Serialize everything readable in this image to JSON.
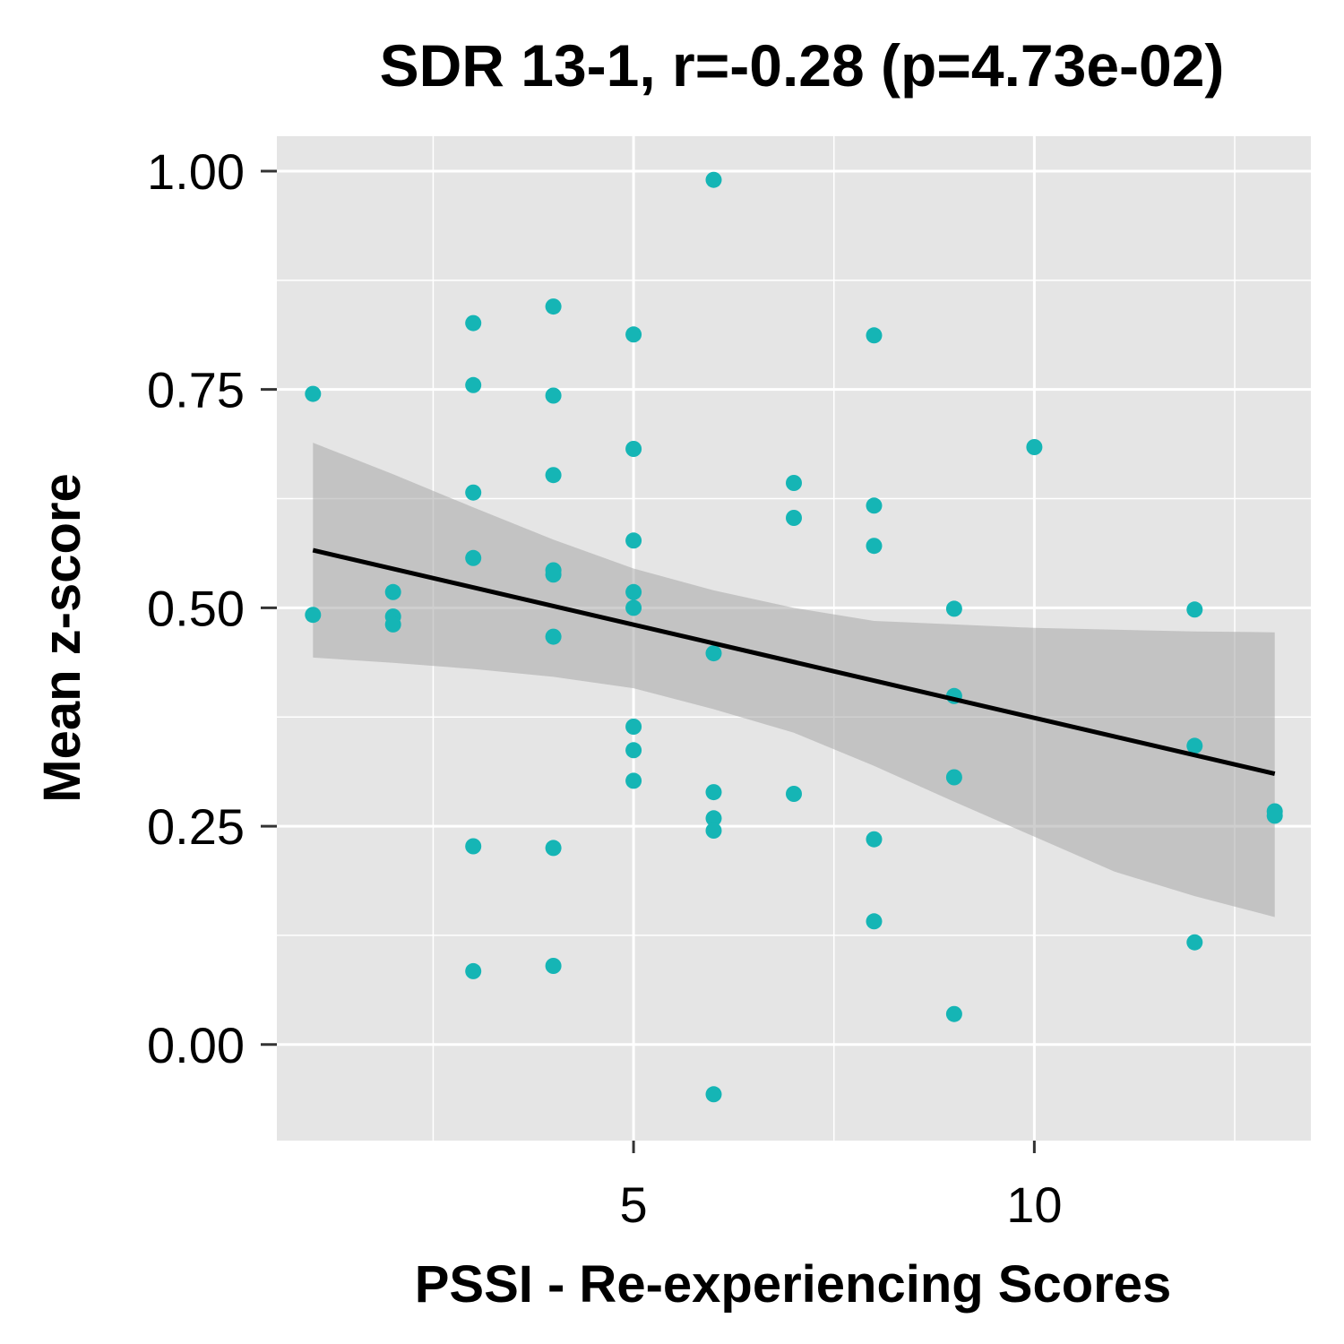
{
  "chart_data": {
    "type": "scatter",
    "title": "SDR 13-1, r=-0.28 (p=4.73e-02)",
    "xlabel": "PSSI - Re-experiencing Scores",
    "ylabel": "Mean z-score",
    "xlim": [
      0.55,
      13.45
    ],
    "ylim": [
      -0.11,
      1.04
    ],
    "x_ticks": [
      {
        "value": 5,
        "label": "5"
      },
      {
        "value": 10,
        "label": "10"
      }
    ],
    "x_minor_grid": [
      2.5,
      7.5,
      12.5
    ],
    "y_ticks": [
      {
        "value": 0.0,
        "label": "0.00"
      },
      {
        "value": 0.25,
        "label": "0.25"
      },
      {
        "value": 0.5,
        "label": "0.50"
      },
      {
        "value": 0.75,
        "label": "0.75"
      },
      {
        "value": 1.0,
        "label": "1.00"
      }
    ],
    "y_minor_grid": [
      0.125,
      0.375,
      0.625,
      0.875
    ],
    "grid": true,
    "colors": {
      "panel": "#e5e5e5",
      "grid": "#ffffff",
      "point": "#15b5b5",
      "ribbon": "#a8a8a8",
      "fit": "#000000"
    },
    "series": [
      {
        "name": "observations",
        "points": [
          [
            1,
            0.745
          ],
          [
            1,
            0.492
          ],
          [
            2,
            0.518
          ],
          [
            2,
            0.49
          ],
          [
            2,
            0.481
          ],
          [
            3,
            0.826
          ],
          [
            3,
            0.755
          ],
          [
            3,
            0.632
          ],
          [
            3,
            0.557
          ],
          [
            3,
            0.227
          ],
          [
            3,
            0.084
          ],
          [
            4,
            0.845
          ],
          [
            4,
            0.743
          ],
          [
            4,
            0.652
          ],
          [
            4,
            0.543
          ],
          [
            4,
            0.538
          ],
          [
            4,
            0.467
          ],
          [
            4,
            0.225
          ],
          [
            4,
            0.09
          ],
          [
            5,
            0.813
          ],
          [
            5,
            0.682
          ],
          [
            5,
            0.577
          ],
          [
            5,
            0.518
          ],
          [
            5,
            0.5
          ],
          [
            5,
            0.364
          ],
          [
            5,
            0.337
          ],
          [
            5,
            0.302
          ],
          [
            6,
            0.99
          ],
          [
            6,
            0.448
          ],
          [
            6,
            0.289
          ],
          [
            6,
            0.259
          ],
          [
            6,
            0.245
          ],
          [
            6,
            -0.057
          ],
          [
            7,
            0.643
          ],
          [
            7,
            0.603
          ],
          [
            7,
            0.287
          ],
          [
            8,
            0.812
          ],
          [
            8,
            0.617
          ],
          [
            8,
            0.571
          ],
          [
            8,
            0.235
          ],
          [
            8,
            0.141
          ],
          [
            9,
            0.499
          ],
          [
            9,
            0.399
          ],
          [
            9,
            0.306
          ],
          [
            9,
            0.035
          ],
          [
            10,
            0.684
          ],
          [
            12,
            0.498
          ],
          [
            12,
            0.342
          ],
          [
            12,
            0.117
          ],
          [
            13,
            0.267
          ],
          [
            13,
            0.262
          ]
        ]
      }
    ],
    "fit": {
      "x": [
        1,
        13
      ],
      "y": [
        0.566,
        0.31
      ],
      "ci_x": [
        1,
        2,
        3,
        4,
        5,
        6,
        7,
        8,
        9,
        10,
        11,
        12,
        13
      ],
      "ci_lower": [
        0.443,
        0.437,
        0.43,
        0.421,
        0.408,
        0.384,
        0.357,
        0.319,
        0.278,
        0.238,
        0.198,
        0.17,
        0.146
      ],
      "ci_upper": [
        0.689,
        0.653,
        0.615,
        0.578,
        0.545,
        0.52,
        0.5,
        0.485,
        0.481,
        0.477,
        0.475,
        0.473,
        0.472
      ]
    }
  }
}
